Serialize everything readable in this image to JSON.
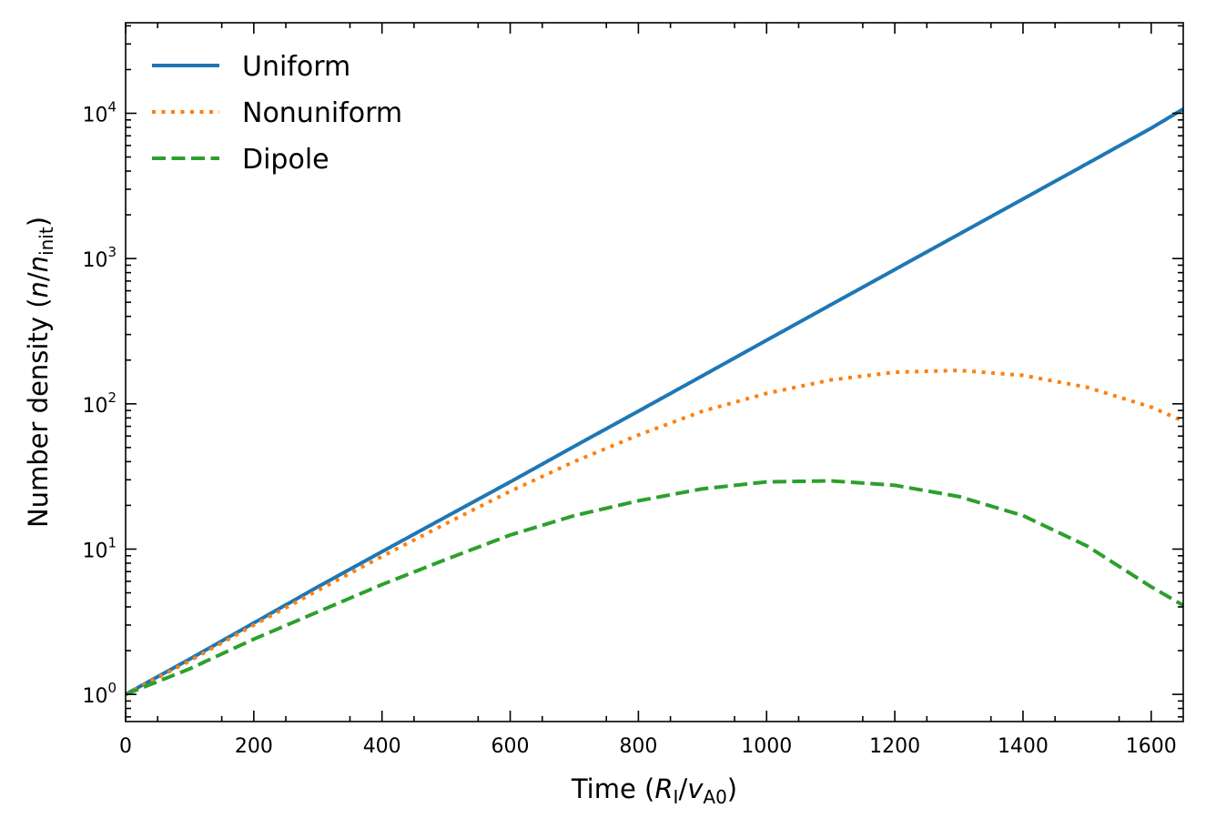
{
  "chart_data": {
    "type": "line",
    "xlabel": {
      "prefix": "Time (",
      "var1": "R",
      "sub1": "I",
      "slash": "/",
      "var2": "v",
      "sub2": "A0",
      "suffix": ")"
    },
    "ylabel": {
      "prefix": "Number density (",
      "var1": "n",
      "slash": "/",
      "var2": "n",
      "sub2": "init",
      "suffix": ")"
    },
    "xlim": [
      0,
      1650
    ],
    "ylim": [
      0.65,
      42000
    ],
    "yscale": "log",
    "x_ticks": [
      {
        "value": 0,
        "label": "0"
      },
      {
        "value": 200,
        "label": "200"
      },
      {
        "value": 400,
        "label": "400"
      },
      {
        "value": 600,
        "label": "600"
      },
      {
        "value": 800,
        "label": "800"
      },
      {
        "value": 1000,
        "label": "1000"
      },
      {
        "value": 1200,
        "label": "1200"
      },
      {
        "value": 1400,
        "label": "1400"
      },
      {
        "value": 1600,
        "label": "1600"
      }
    ],
    "y_ticks": [
      {
        "value": 1,
        "base": "10",
        "exp": "0"
      },
      {
        "value": 10,
        "base": "10",
        "exp": "1"
      },
      {
        "value": 100,
        "base": "10",
        "exp": "2"
      },
      {
        "value": 1000,
        "base": "10",
        "exp": "3"
      },
      {
        "value": 10000,
        "base": "10",
        "exp": "4"
      }
    ],
    "legend_position": "top-left",
    "series": [
      {
        "name": "Uniform",
        "color": "#1f77b4",
        "style": "solid",
        "x": [
          0,
          100,
          200,
          300,
          400,
          500,
          600,
          700,
          800,
          900,
          1000,
          1100,
          1200,
          1300,
          1400,
          1500,
          1600,
          1650
        ],
        "y": [
          1.0,
          1.75,
          3.1,
          5.5,
          9.6,
          16.7,
          29,
          51,
          89,
          156,
          274,
          480,
          840,
          1470,
          2570,
          4500,
          7900,
          10700
        ]
      },
      {
        "name": "Nonuniform",
        "color": "#ff7f0e",
        "style": "dotted",
        "x": [
          0,
          100,
          200,
          300,
          400,
          500,
          600,
          700,
          800,
          900,
          1000,
          1100,
          1200,
          1300,
          1400,
          1500,
          1600,
          1650
        ],
        "y": [
          1.0,
          1.7,
          3.0,
          5.2,
          8.9,
          15.0,
          25,
          40,
          61,
          89,
          118,
          146,
          165,
          170,
          157,
          130,
          95,
          76
        ]
      },
      {
        "name": "Dipole",
        "color": "#2ca02c",
        "style": "dashed",
        "x": [
          0,
          100,
          200,
          300,
          400,
          500,
          600,
          700,
          800,
          900,
          1000,
          1100,
          1200,
          1300,
          1400,
          1500,
          1600,
          1650
        ],
        "y": [
          1.0,
          1.5,
          2.4,
          3.7,
          5.7,
          8.5,
          12.5,
          17.0,
          21.5,
          26.0,
          29.0,
          29.5,
          27.5,
          23.0,
          17.0,
          10.5,
          5.5,
          4.1
        ]
      }
    ]
  }
}
